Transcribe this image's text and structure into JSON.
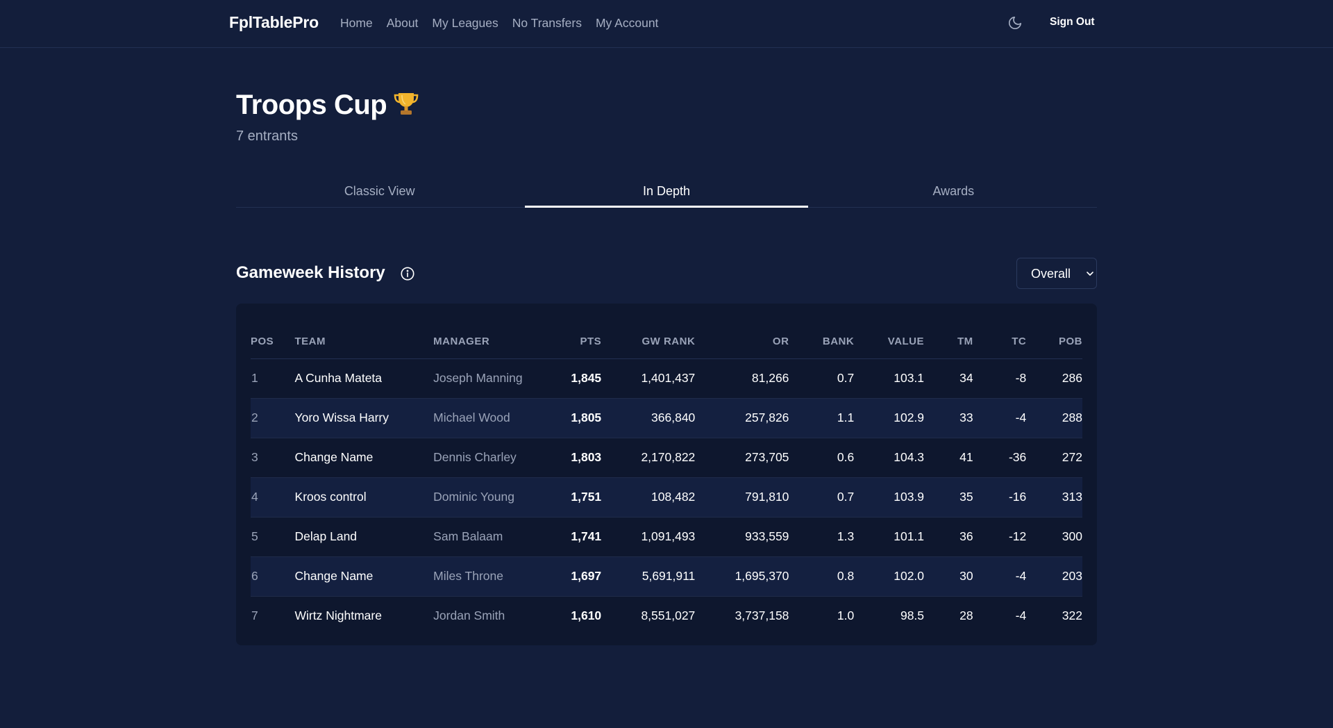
{
  "nav": {
    "brand": "FplTablePro",
    "links": [
      "Home",
      "About",
      "My Leagues",
      "No Transfers",
      "My Account"
    ],
    "sign_out": "Sign Out",
    "theme_icon": "moon-icon"
  },
  "league": {
    "title": "Troops Cup",
    "emoji": "trophy-icon",
    "entrants": "7 entrants"
  },
  "tabs": [
    {
      "label": "Classic View",
      "active": false
    },
    {
      "label": "In Depth",
      "active": true
    },
    {
      "label": "Awards",
      "active": false
    }
  ],
  "section": {
    "title": "Gameweek History",
    "info_icon": "info-icon",
    "select_value": "Overall"
  },
  "table": {
    "headers": [
      "POS",
      "TEAM",
      "MANAGER",
      "PTS",
      "GW RANK",
      "OR",
      "BANK",
      "VALUE",
      "TM",
      "TC",
      "POB"
    ],
    "rows": [
      {
        "pos": "1",
        "team": "A Cunha Mateta",
        "manager": "Joseph Manning",
        "pts": "1,845",
        "gw_rank": "1,401,437",
        "or": "81,266",
        "bank": "0.7",
        "value": "103.1",
        "tm": "34",
        "tc": "-8",
        "pob": "286"
      },
      {
        "pos": "2",
        "team": "Yoro Wissa Harry",
        "manager": "Michael Wood",
        "pts": "1,805",
        "gw_rank": "366,840",
        "or": "257,826",
        "bank": "1.1",
        "value": "102.9",
        "tm": "33",
        "tc": "-4",
        "pob": "288"
      },
      {
        "pos": "3",
        "team": "Change Name",
        "manager": "Dennis Charley",
        "pts": "1,803",
        "gw_rank": "2,170,822",
        "or": "273,705",
        "bank": "0.6",
        "value": "104.3",
        "tm": "41",
        "tc": "-36",
        "pob": "272"
      },
      {
        "pos": "4",
        "team": "Kroos control",
        "manager": "Dominic Young",
        "pts": "1,751",
        "gw_rank": "108,482",
        "or": "791,810",
        "bank": "0.7",
        "value": "103.9",
        "tm": "35",
        "tc": "-16",
        "pob": "313"
      },
      {
        "pos": "5",
        "team": "Delap Land",
        "manager": "Sam Balaam",
        "pts": "1,741",
        "gw_rank": "1,091,493",
        "or": "933,559",
        "bank": "1.3",
        "value": "101.1",
        "tm": "36",
        "tc": "-12",
        "pob": "300"
      },
      {
        "pos": "6",
        "team": "Change Name",
        "manager": "Miles Throne",
        "pts": "1,697",
        "gw_rank": "5,691,911",
        "or": "1,695,370",
        "bank": "0.8",
        "value": "102.0",
        "tm": "30",
        "tc": "-4",
        "pob": "203"
      },
      {
        "pos": "7",
        "team": "Wirtz Nightmare",
        "manager": "Jordan Smith",
        "pts": "1,610",
        "gw_rank": "8,551,027",
        "or": "3,737,158",
        "bank": "1.0",
        "value": "98.5",
        "tm": "28",
        "tc": "-4",
        "pob": "322"
      }
    ]
  },
  "colors": {
    "background": "#131e3b",
    "card": "#0e172e",
    "row_alt": "#142040",
    "muted_text": "#a6afc3",
    "trophy_gold": "#f2b42c"
  }
}
